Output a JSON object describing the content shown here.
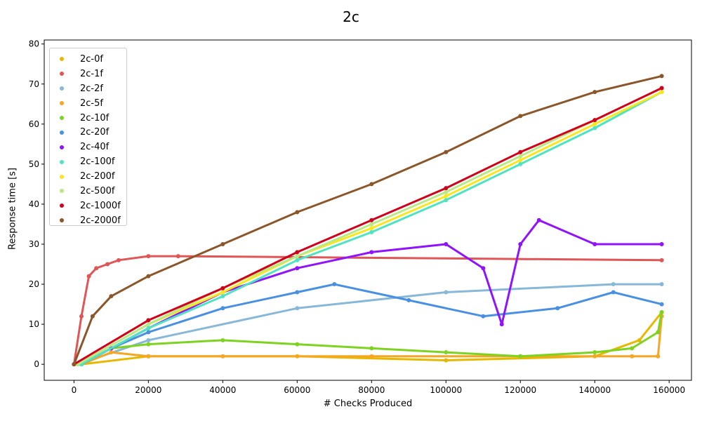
{
  "chart_data": {
    "type": "scatter",
    "title": "2c",
    "xlabel": "# Checks Produced",
    "ylabel": "Response time [s]",
    "xlim": [
      -8000,
      166000
    ],
    "ylim": [
      -4,
      81
    ],
    "xticks": [
      0,
      20000,
      40000,
      60000,
      80000,
      100000,
      120000,
      140000,
      160000
    ],
    "yticks": [
      0,
      10,
      20,
      30,
      40,
      50,
      60,
      70,
      80
    ],
    "grid": false,
    "legend_position": "top-left",
    "series": [
      {
        "name": "2c-0f",
        "color": "#e6b800",
        "points": [
          [
            0,
            0
          ],
          [
            2000,
            0
          ],
          [
            20000,
            2
          ],
          [
            60000,
            2
          ],
          [
            100000,
            1
          ],
          [
            140000,
            2
          ],
          [
            152000,
            6
          ],
          [
            158000,
            13
          ]
        ]
      },
      {
        "name": "2c-1f",
        "color": "#e05555",
        "points": [
          [
            0,
            0
          ],
          [
            2000,
            12
          ],
          [
            4000,
            22
          ],
          [
            6000,
            24
          ],
          [
            9000,
            25
          ],
          [
            12000,
            26
          ],
          [
            20000,
            27
          ],
          [
            28000,
            27
          ],
          [
            158000,
            26
          ]
        ]
      },
      {
        "name": "2c-2f",
        "color": "#88b8d8",
        "points": [
          [
            1000,
            0
          ],
          [
            20000,
            6
          ],
          [
            60000,
            14
          ],
          [
            100000,
            18
          ],
          [
            145000,
            20
          ],
          [
            158000,
            20
          ]
        ]
      },
      {
        "name": "2c-5f",
        "color": "#f5a623",
        "points": [
          [
            2000,
            0
          ],
          [
            10000,
            3
          ],
          [
            20000,
            2
          ],
          [
            40000,
            2
          ],
          [
            80000,
            2
          ],
          [
            120000,
            2
          ],
          [
            150000,
            2
          ],
          [
            157000,
            2
          ],
          [
            158000,
            12
          ]
        ]
      },
      {
        "name": "2c-10f",
        "color": "#7ed321",
        "points": [
          [
            2000,
            0
          ],
          [
            10000,
            4
          ],
          [
            20000,
            5
          ],
          [
            40000,
            6
          ],
          [
            60000,
            5
          ],
          [
            80000,
            4
          ],
          [
            100000,
            3
          ],
          [
            120000,
            2
          ],
          [
            140000,
            3
          ],
          [
            150000,
            4
          ],
          [
            157000,
            8
          ],
          [
            158000,
            13
          ]
        ]
      },
      {
        "name": "2c-20f",
        "color": "#4a90e2",
        "points": [
          [
            2000,
            0
          ],
          [
            10000,
            4
          ],
          [
            20000,
            8
          ],
          [
            40000,
            14
          ],
          [
            60000,
            18
          ],
          [
            70000,
            20
          ],
          [
            90000,
            16
          ],
          [
            110000,
            12
          ],
          [
            130000,
            14
          ],
          [
            145000,
            18
          ],
          [
            158000,
            15
          ]
        ]
      },
      {
        "name": "2c-40f",
        "color": "#9013fe",
        "points": [
          [
            2000,
            0
          ],
          [
            10000,
            4
          ],
          [
            20000,
            9
          ],
          [
            40000,
            18
          ],
          [
            60000,
            24
          ],
          [
            80000,
            28
          ],
          [
            100000,
            30
          ],
          [
            110000,
            24
          ],
          [
            115000,
            10
          ],
          [
            120000,
            30
          ],
          [
            125000,
            36
          ],
          [
            140000,
            30
          ],
          [
            158000,
            30
          ]
        ]
      },
      {
        "name": "2c-100f",
        "color": "#50e3c2",
        "points": [
          [
            2000,
            0
          ],
          [
            20000,
            9
          ],
          [
            40000,
            17
          ],
          [
            60000,
            26
          ],
          [
            80000,
            33
          ],
          [
            100000,
            41
          ],
          [
            120000,
            50
          ],
          [
            140000,
            59
          ],
          [
            158000,
            68
          ]
        ]
      },
      {
        "name": "2c-200f",
        "color": "#f8e71c",
        "points": [
          [
            1000,
            0
          ],
          [
            20000,
            10
          ],
          [
            40000,
            18
          ],
          [
            60000,
            27
          ],
          [
            80000,
            34
          ],
          [
            100000,
            42
          ],
          [
            120000,
            51
          ],
          [
            140000,
            60
          ],
          [
            158000,
            68
          ]
        ]
      },
      {
        "name": "2c-500f",
        "color": "#b8e986",
        "points": [
          [
            1000,
            0
          ],
          [
            20000,
            10
          ],
          [
            40000,
            19
          ],
          [
            60000,
            27
          ],
          [
            80000,
            35
          ],
          [
            100000,
            43
          ],
          [
            120000,
            52
          ],
          [
            140000,
            61
          ],
          [
            158000,
            69
          ]
        ]
      },
      {
        "name": "2c-1000f",
        "color": "#d0021b",
        "points": [
          [
            0,
            0
          ],
          [
            20000,
            11
          ],
          [
            40000,
            19
          ],
          [
            60000,
            28
          ],
          [
            80000,
            36
          ],
          [
            100000,
            44
          ],
          [
            120000,
            53
          ],
          [
            140000,
            61
          ],
          [
            158000,
            69
          ]
        ]
      },
      {
        "name": "2c-2000f",
        "color": "#8b572a",
        "points": [
          [
            0,
            0
          ],
          [
            5000,
            12
          ],
          [
            10000,
            17
          ],
          [
            20000,
            22
          ],
          [
            40000,
            30
          ],
          [
            60000,
            38
          ],
          [
            80000,
            45
          ],
          [
            100000,
            53
          ],
          [
            120000,
            62
          ],
          [
            140000,
            68
          ],
          [
            158000,
            72
          ]
        ]
      }
    ]
  }
}
